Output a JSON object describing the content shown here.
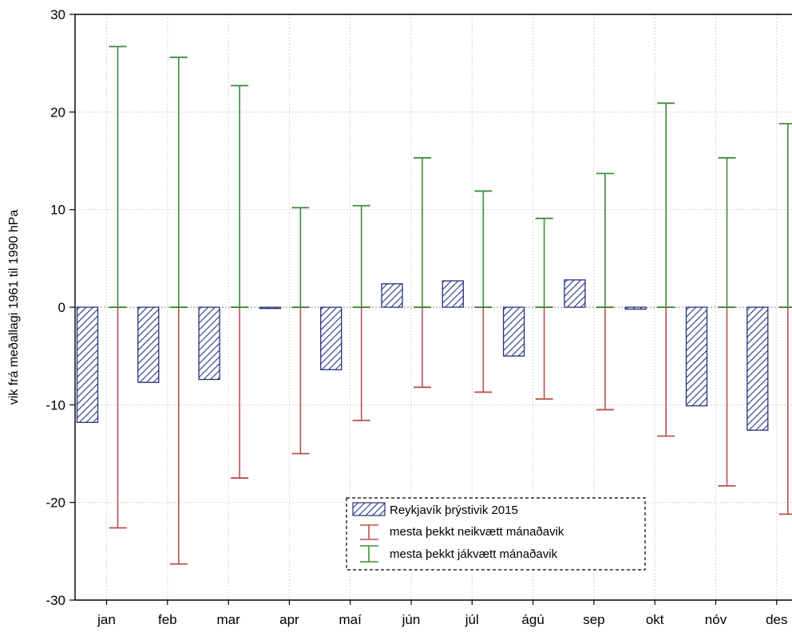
{
  "chart_data": {
    "type": "bar",
    "title": "",
    "xlabel": "",
    "ylabel": "vik frá meðallagi 1961 til 1990 hPa",
    "ylim": [
      -30,
      30
    ],
    "yticks": [
      30,
      20,
      10,
      0,
      -10,
      -20,
      -30
    ],
    "grid": true,
    "legend_position": "bottom-center",
    "categories": [
      "jan",
      "feb",
      "mar",
      "apr",
      "maí",
      "jún",
      "júl",
      "ágú",
      "sep",
      "okt",
      "nóv",
      "des"
    ],
    "series": [
      {
        "name": "Reykjavík þrýstivik 2015",
        "kind": "bar",
        "values": [
          -11.8,
          -7.7,
          -7.4,
          -0.1,
          -6.4,
          2.4,
          2.7,
          -5.0,
          2.8,
          -0.2,
          -10.1,
          -12.6
        ]
      },
      {
        "name": "mesta þekkt neikvætt mánaðavik",
        "kind": "error-low",
        "values": [
          -22.6,
          -26.3,
          -17.5,
          -15.0,
          -11.6,
          -8.2,
          -8.7,
          -9.4,
          -10.5,
          -13.2,
          -18.3,
          -21.2
        ]
      },
      {
        "name": "mesta þekkt jákvætt mánaðavik",
        "kind": "error-high",
        "values": [
          26.7,
          25.6,
          22.7,
          10.2,
          10.4,
          15.3,
          11.9,
          9.1,
          13.7,
          20.9,
          15.3,
          18.8
        ]
      }
    ],
    "colors": {
      "bar_stroke": "#2a2f7a",
      "bar_hatch": "#3a3f8c",
      "bar_fill": "#ffffff",
      "negative_line": "#b8524a",
      "positive_line": "#3c8c3c",
      "grid": "#d4d4d4",
      "axis": "#000000"
    }
  }
}
